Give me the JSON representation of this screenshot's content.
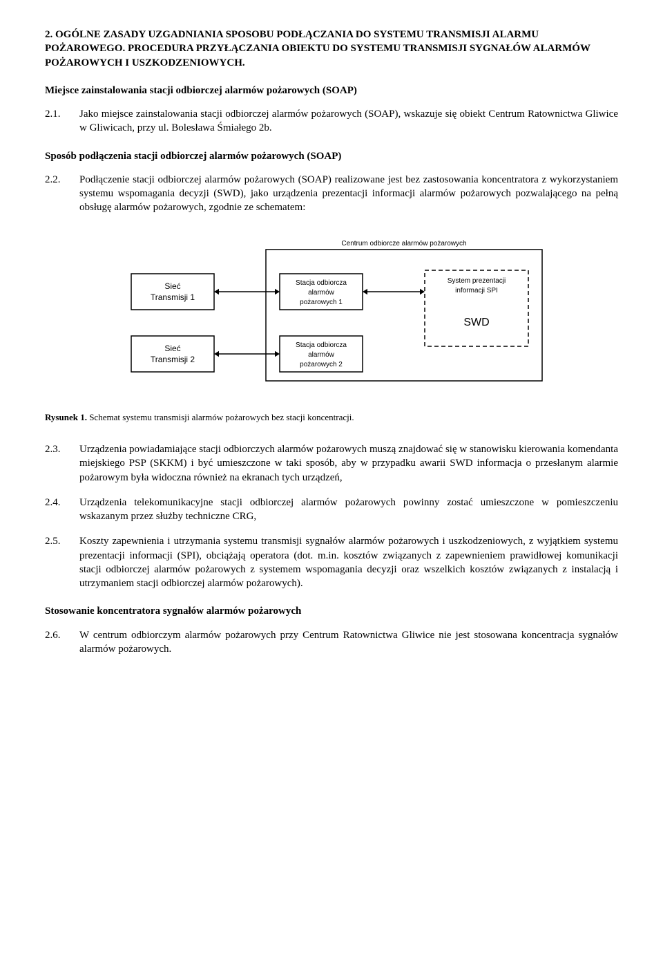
{
  "section": {
    "num": "2.",
    "title_line1": "OGÓLNE ZASADY UZGADNIANIA SPOSOBU PODŁĄCZANIA DO SYSTEMU TRANSMISJI ALARMU POŻAROWEGO.",
    "title_line2": "PROCEDURA PRZYŁĄCZANIA OBIEKTU DO SYSTEMU TRANSMISJI SYGNAŁÓW ALARMÓW POŻAROWYCH I USZKODZENIOWYCH."
  },
  "subtitle1": "Miejsce zainstalowania stacji odbiorczej alarmów pożarowych (SOAP)",
  "p21": {
    "num": "2.1.",
    "text": "Jako miejsce zainstalowania stacji odbiorczej alarmów pożarowych (SOAP), wskazuje się obiekt Centrum Ratownictwa Gliwice w Gliwicach, przy ul. Bolesława Śmiałego 2b."
  },
  "subtitle2": "Sposób podłączenia stacji odbiorczej alarmów pożarowych (SOAP)",
  "p22": {
    "num": "2.2.",
    "text": "Podłączenie stacji odbiorczej alarmów pożarowych (SOAP) realizowane jest bez zastosowania koncentratora z wykorzystaniem systemu wspomagania decyzji (SWD), jako urządzenia prezentacji informacji alarmów pożarowych pozwalającego na pełną obsługę alarmów pożarowych, zgodnie ze schematem:"
  },
  "diagram": {
    "frame_title": "Centrum odbiorcze alarmów pożarowych",
    "net1": [
      "Sieć",
      "Transmisji 1"
    ],
    "net2": [
      "Sieć",
      "Transmisji 2"
    ],
    "soap1": [
      "Stacja odbiorcza",
      "alarmów",
      "pożarowych 1"
    ],
    "soap2": [
      "Stacja odbiorcza",
      "alarmów",
      "pożarowych 2"
    ],
    "spi": [
      "System prezentacji",
      "informacji SPI"
    ],
    "swd": "SWD",
    "styles": {
      "stroke": "#000000",
      "fill": "#ffffff",
      "line_width": 1.5,
      "font_main": 12,
      "font_small": 10,
      "font_swd": 16,
      "dash": "6,4",
      "arrow_size": 7
    }
  },
  "caption": {
    "label": "Rysunek 1.",
    "text": " Schemat systemu transmisji alarmów pożarowych bez stacji koncentracji."
  },
  "p23": {
    "num": "2.3.",
    "text": "Urządzenia powiadamiające stacji odbiorczych alarmów pożarowych muszą znajdować się w stanowisku kierowania komendanta miejskiego PSP (SKKM) i być umieszczone w taki sposób, aby w przypadku awarii SWD informacja o przesłanym alarmie pożarowym była widoczna również na ekranach tych urządzeń,"
  },
  "p24": {
    "num": "2.4.",
    "text": "Urządzenia telekomunikacyjne stacji odbiorczej alarmów pożarowych powinny zostać umieszczone w pomieszczeniu wskazanym przez służby techniczne CRG,"
  },
  "p25": {
    "num": "2.5.",
    "text": "Koszty zapewnienia i utrzymania systemu transmisji sygnałów alarmów pożarowych i uszkodzeniowych, z wyjątkiem systemu prezentacji informacji (SPI), obciążają operatora (dot. m.in. kosztów związanych z zapewnieniem prawidłowej komunikacji stacji odbiorczej alarmów pożarowych z systemem wspomagania decyzji oraz wszelkich kosztów związanych z instalacją i utrzymaniem stacji odbiorczej alarmów pożarowych)."
  },
  "subtitle3": "Stosowanie koncentratora sygnałów alarmów pożarowych",
  "p26": {
    "num": "2.6.",
    "text": "W centrum odbiorczym alarmów pożarowych przy Centrum Ratownictwa Gliwice nie jest stosowana koncentracja sygnałów alarmów pożarowych."
  }
}
